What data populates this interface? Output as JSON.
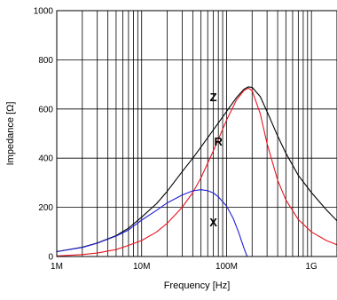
{
  "chart_data": {
    "type": "line",
    "title": "",
    "xlabel": "Frequency [Hz]",
    "ylabel": "Impedance [Ω]",
    "xscale": "log",
    "xlim": [
      1000000,
      2000000000
    ],
    "ylim": [
      0,
      1000
    ],
    "grid": true,
    "x_ticks": [
      {
        "value": 1000000,
        "label": "1M"
      },
      {
        "value": 10000000,
        "label": "10M"
      },
      {
        "value": 100000000,
        "label": "100M"
      },
      {
        "value": 1000000000,
        "label": "1G"
      }
    ],
    "y_ticks": [
      {
        "value": 0,
        "label": "0"
      },
      {
        "value": 200,
        "label": "200"
      },
      {
        "value": 400,
        "label": "400"
      },
      {
        "value": 600,
        "label": "600"
      },
      {
        "value": 800,
        "label": "800"
      },
      {
        "value": 1000,
        "label": "1000"
      }
    ],
    "series": [
      {
        "name": "Z",
        "color": "#000000",
        "label_x": 70000000,
        "label_y": 650,
        "x": [
          1000000,
          2000000,
          3000000,
          5000000,
          7000000,
          10000000,
          15000000,
          20000000,
          30000000,
          40000000,
          50000000,
          70000000,
          100000000,
          130000000,
          160000000,
          180000000,
          200000000,
          250000000,
          300000000,
          400000000,
          500000000,
          700000000,
          1000000000,
          1500000000,
          2000000000
        ],
        "values": [
          20,
          38,
          55,
          85,
          115,
          160,
          215,
          265,
          345,
          400,
          445,
          515,
          590,
          645,
          680,
          690,
          688,
          650,
          590,
          490,
          420,
          330,
          260,
          190,
          145
        ]
      },
      {
        "name": "R",
        "color": "#e8141e",
        "label_x": 80000000,
        "label_y": 470,
        "x": [
          1000000,
          2000000,
          3000000,
          5000000,
          7000000,
          10000000,
          15000000,
          20000000,
          30000000,
          40000000,
          50000000,
          70000000,
          100000000,
          130000000,
          160000000,
          180000000,
          200000000,
          250000000,
          300000000,
          400000000,
          500000000,
          700000000,
          1000000000,
          1500000000,
          2000000000
        ],
        "values": [
          2,
          8,
          14,
          28,
          45,
          65,
          100,
          135,
          200,
          260,
          320,
          430,
          555,
          635,
          675,
          685,
          675,
          580,
          460,
          310,
          230,
          150,
          100,
          65,
          48
        ]
      },
      {
        "name": "X",
        "color": "#1f1fd6",
        "label_x": 70000000,
        "label_y": 140,
        "x": [
          1000000,
          2000000,
          3000000,
          5000000,
          7000000,
          10000000,
          15000000,
          20000000,
          30000000,
          40000000,
          50000000,
          60000000,
          70000000,
          80000000,
          100000000,
          120000000,
          140000000,
          160000000,
          175000000
        ],
        "values": [
          20,
          37,
          54,
          83,
          108,
          148,
          188,
          218,
          250,
          267,
          272,
          268,
          258,
          243,
          205,
          155,
          95,
          35,
          0
        ]
      }
    ]
  }
}
